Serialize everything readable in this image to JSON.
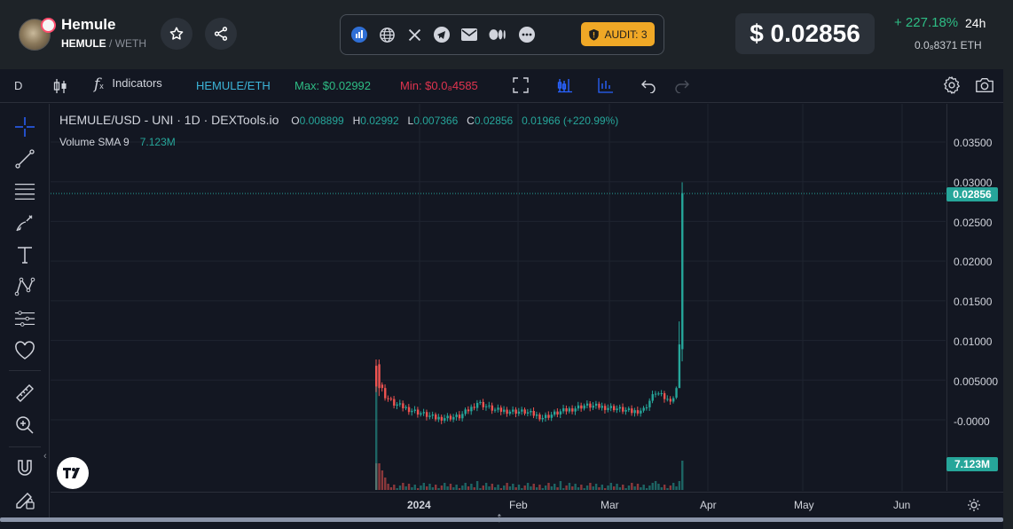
{
  "header": {
    "token_name": "Hemule",
    "token_symbol": "HEMULE",
    "pair_sep": " / ",
    "pair_quote": "WETH",
    "audit_label": "AUDIT: 3",
    "price": "$ 0.02856",
    "change": "+ 227.18%",
    "change_period": "24h",
    "eth_price": "0.0₈8371 ETH",
    "social_icons": [
      "dextools-icon",
      "globe-icon",
      "x-icon",
      "telegram-icon",
      "mail-icon",
      "medium-icon",
      "more-icon"
    ],
    "colors": {
      "accent_green": "#2ebd85",
      "audit": "#f0a826"
    }
  },
  "toolbar": {
    "interval": "D",
    "indicators": "Indicators",
    "pair": "HEMULE/ETH",
    "max": "Max: $0.02992",
    "min": "Min: $0.0₈4585"
  },
  "legend": {
    "title": "HEMULE/USD - UNI · 1D · DEXTools.io",
    "o_label": "O",
    "o": "0.008899",
    "h_label": "H",
    "h": "0.02992",
    "l_label": "L",
    "l": "0.007366",
    "c_label": "C",
    "c": "0.02856",
    "change": "0.01966 (+220.99%)",
    "volume_label": "Volume SMA 9",
    "volume_value": "7.123M"
  },
  "axes": {
    "price_ticks": [
      "0.03500",
      "0.03000",
      "0.02500",
      "0.02000",
      "0.01500",
      "0.01000",
      "0.005000",
      "-0.0000"
    ],
    "last_price_tag": "0.02856",
    "volume_tag": "7.123M",
    "time_ticks": [
      "2024",
      "Feb",
      "Mar",
      "Apr",
      "May",
      "Jun"
    ]
  },
  "chart_data": {
    "type": "candlestick",
    "ylim": [
      -0.0015,
      0.037
    ],
    "last_price": 0.02856,
    "candles_summary": [
      {
        "x": "Dec 20",
        "o": 0.0065,
        "h": 0.0075,
        "l": 0.0035,
        "c": 0.004,
        "dir": "down"
      },
      {
        "x": "Dec 22",
        "o": 0.0035,
        "h": 0.005,
        "l": 0.002,
        "c": 0.0025,
        "dir": "down"
      },
      {
        "x": "Dec 28",
        "o": 0.0018,
        "h": 0.0022,
        "l": 0.001,
        "c": 0.0012,
        "dir": "down"
      },
      {
        "x": "Jan 5",
        "o": 0.0002,
        "h": 0.0008,
        "l": -0.0002,
        "c": 0.0003,
        "dir": "down"
      },
      {
        "x": "Jan 12",
        "o": 0.001,
        "h": 0.0025,
        "l": 0.0005,
        "c": 0.002,
        "dir": "up"
      },
      {
        "x": "Jan 25",
        "o": 0.0008,
        "h": 0.0012,
        "l": 0.0002,
        "c": 0.0005,
        "dir": "down"
      },
      {
        "x": "Feb 5",
        "o": 0.0012,
        "h": 0.0018,
        "l": 0.0008,
        "c": 0.0015,
        "dir": "up"
      },
      {
        "x": "Feb 20",
        "o": 0.0015,
        "h": 0.0035,
        "l": 0.001,
        "c": 0.003,
        "dir": "up"
      },
      {
        "x": "Feb 27",
        "o": 0.003,
        "h": 0.008,
        "l": 0.0028,
        "c": 0.0075,
        "dir": "up"
      },
      {
        "x": "Feb 28",
        "o": 0.0075,
        "h": 0.012,
        "l": 0.006,
        "c": 0.011,
        "dir": "up"
      },
      {
        "x": "Mar 1",
        "o": 0.0089,
        "h": 0.02992,
        "l": 0.007366,
        "c": 0.02856,
        "dir": "up"
      }
    ]
  }
}
